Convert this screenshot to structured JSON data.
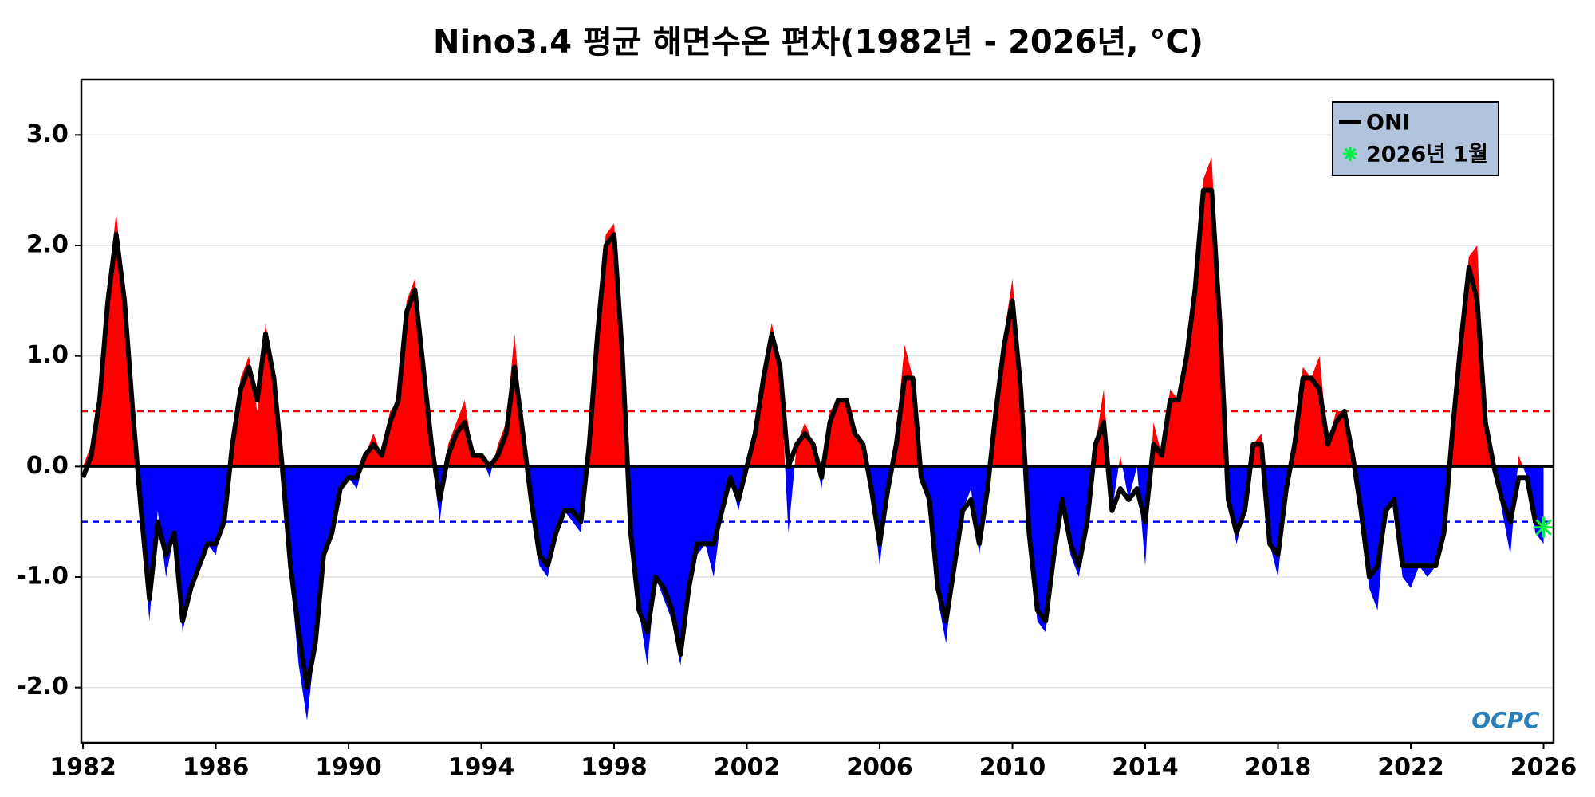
{
  "chart_data": {
    "type": "anomaly-area",
    "title": "Nino3.4 평균 해면수온 편차(1982년 - 2026년, °C)",
    "watermark": "OCPC",
    "x": [
      1982.0,
      1982.25,
      1982.5,
      1982.75,
      1983.0,
      1983.25,
      1983.5,
      1983.75,
      1984.0,
      1984.25,
      1984.5,
      1984.75,
      1985.0,
      1985.25,
      1985.5,
      1985.75,
      1986.0,
      1986.25,
      1986.5,
      1986.75,
      1987.0,
      1987.25,
      1987.5,
      1987.75,
      1988.0,
      1988.25,
      1988.5,
      1988.75,
      1989.0,
      1989.25,
      1989.5,
      1989.75,
      1990.0,
      1990.25,
      1990.5,
      1990.75,
      1991.0,
      1991.25,
      1991.5,
      1991.75,
      1992.0,
      1992.25,
      1992.5,
      1992.75,
      1993.0,
      1993.25,
      1993.5,
      1993.75,
      1994.0,
      1994.25,
      1994.5,
      1994.75,
      1995.0,
      1995.25,
      1995.5,
      1995.75,
      1996.0,
      1996.25,
      1996.5,
      1996.75,
      1997.0,
      1997.25,
      1997.5,
      1997.75,
      1998.0,
      1998.25,
      1998.5,
      1998.75,
      1999.0,
      1999.25,
      1999.5,
      1999.75,
      2000.0,
      2000.25,
      2000.5,
      2000.75,
      2001.0,
      2001.25,
      2001.5,
      2001.75,
      2002.0,
      2002.25,
      2002.5,
      2002.75,
      2003.0,
      2003.25,
      2003.5,
      2003.75,
      2004.0,
      2004.25,
      2004.5,
      2004.75,
      2005.0,
      2005.25,
      2005.5,
      2005.75,
      2006.0,
      2006.25,
      2006.5,
      2006.75,
      2007.0,
      2007.25,
      2007.5,
      2007.75,
      2008.0,
      2008.25,
      2008.5,
      2008.75,
      2009.0,
      2009.25,
      2009.5,
      2009.75,
      2010.0,
      2010.25,
      2010.5,
      2010.75,
      2011.0,
      2011.25,
      2011.5,
      2011.75,
      2012.0,
      2012.25,
      2012.5,
      2012.75,
      2013.0,
      2013.25,
      2013.5,
      2013.75,
      2014.0,
      2014.25,
      2014.5,
      2014.75,
      2015.0,
      2015.25,
      2015.5,
      2015.75,
      2016.0,
      2016.25,
      2016.5,
      2016.75,
      2017.0,
      2017.25,
      2017.5,
      2017.75,
      2018.0,
      2018.25,
      2018.5,
      2018.75,
      2019.0,
      2019.25,
      2019.5,
      2019.75,
      2020.0,
      2020.25,
      2020.5,
      2020.75,
      2021.0,
      2021.25,
      2021.5,
      2021.75,
      2022.0,
      2022.25,
      2022.5,
      2022.75,
      2023.0,
      2023.25,
      2023.5,
      2023.75,
      2024.0,
      2024.25,
      2024.5,
      2024.75,
      2025.0,
      2025.25,
      2025.5,
      2025.75,
      2026.0
    ],
    "anomaly": {
      "positive_color": "#ff0000",
      "negative_color": "#0000ff",
      "values": [
        0.0,
        0.2,
        0.6,
        1.6,
        2.3,
        1.5,
        0.4,
        -0.5,
        -1.4,
        -0.4,
        -1.0,
        -0.6,
        -1.5,
        -1.1,
        -0.9,
        -0.7,
        -0.8,
        -0.4,
        0.3,
        0.8,
        1.0,
        0.5,
        1.3,
        0.8,
        0.0,
        -1.0,
        -1.8,
        -2.3,
        -1.6,
        -0.8,
        -0.6,
        -0.2,
        -0.1,
        -0.2,
        0.1,
        0.3,
        0.1,
        0.5,
        0.6,
        1.5,
        1.7,
        0.9,
        0.1,
        -0.5,
        0.2,
        0.4,
        0.6,
        0.1,
        0.1,
        -0.1,
        0.2,
        0.4,
        1.2,
        0.3,
        -0.4,
        -0.9,
        -1.0,
        -0.6,
        -0.4,
        -0.5,
        -0.6,
        0.2,
        1.3,
        2.1,
        2.2,
        1.0,
        -0.7,
        -1.3,
        -1.8,
        -1.0,
        -1.2,
        -1.4,
        -1.8,
        -1.1,
        -0.8,
        -0.7,
        -1.0,
        -0.4,
        -0.1,
        -0.4,
        0.0,
        0.3,
        0.9,
        1.3,
        0.9,
        -0.6,
        0.2,
        0.4,
        0.2,
        -0.2,
        0.5,
        0.6,
        0.6,
        0.3,
        0.2,
        -0.2,
        -0.9,
        -0.2,
        0.3,
        1.1,
        0.8,
        -0.1,
        -0.4,
        -1.2,
        -1.6,
        -0.9,
        -0.4,
        -0.2,
        -0.8,
        -0.2,
        0.6,
        1.2,
        1.7,
        0.7,
        -0.7,
        -1.4,
        -1.5,
        -0.8,
        -0.3,
        -0.8,
        -1.0,
        -0.5,
        0.2,
        0.7,
        -0.4,
        0.1,
        -0.3,
        0.0,
        -0.9,
        0.4,
        0.1,
        0.7,
        0.6,
        1.1,
        1.7,
        2.6,
        2.8,
        1.3,
        -0.3,
        -0.7,
        -0.4,
        0.2,
        0.3,
        -0.7,
        -1.0,
        -0.2,
        0.3,
        0.9,
        0.8,
        1.0,
        0.2,
        0.5,
        0.5,
        0.1,
        -0.5,
        -1.1,
        -1.3,
        -0.4,
        -0.3,
        -1.0,
        -1.1,
        -0.9,
        -1.0,
        -0.9,
        -0.6,
        0.3,
        1.2,
        1.9,
        2.0,
        0.4,
        0.0,
        -0.4,
        -0.8,
        0.1,
        -0.1,
        -0.6,
        -0.7
      ]
    },
    "series": [
      {
        "name": "ONI",
        "color": "#000000",
        "values": [
          -0.1,
          0.1,
          0.6,
          1.5,
          2.1,
          1.5,
          0.5,
          -0.4,
          -1.2,
          -0.5,
          -0.8,
          -0.6,
          -1.4,
          -1.1,
          -0.9,
          -0.7,
          -0.7,
          -0.5,
          0.2,
          0.7,
          0.9,
          0.6,
          1.2,
          0.8,
          0.0,
          -0.9,
          -1.5,
          -2.0,
          -1.6,
          -0.8,
          -0.6,
          -0.2,
          -0.1,
          -0.1,
          0.1,
          0.2,
          0.1,
          0.4,
          0.6,
          1.4,
          1.6,
          0.9,
          0.2,
          -0.3,
          0.1,
          0.3,
          0.4,
          0.1,
          0.1,
          0.0,
          0.1,
          0.3,
          0.9,
          0.3,
          -0.3,
          -0.8,
          -0.9,
          -0.6,
          -0.4,
          -0.4,
          -0.5,
          0.2,
          1.2,
          2.0,
          2.1,
          1.0,
          -0.6,
          -1.3,
          -1.5,
          -1.0,
          -1.1,
          -1.3,
          -1.7,
          -1.1,
          -0.7,
          -0.7,
          -0.7,
          -0.4,
          -0.1,
          -0.3,
          0.0,
          0.3,
          0.8,
          1.2,
          0.9,
          0.0,
          0.2,
          0.3,
          0.2,
          -0.1,
          0.4,
          0.6,
          0.6,
          0.3,
          0.2,
          -0.2,
          -0.7,
          -0.2,
          0.2,
          0.8,
          0.8,
          -0.1,
          -0.3,
          -1.1,
          -1.4,
          -0.9,
          -0.4,
          -0.3,
          -0.7,
          -0.2,
          0.5,
          1.1,
          1.5,
          0.7,
          -0.6,
          -1.3,
          -1.4,
          -0.8,
          -0.3,
          -0.7,
          -0.9,
          -0.5,
          0.2,
          0.4,
          -0.4,
          -0.2,
          -0.3,
          -0.2,
          -0.5,
          0.2,
          0.1,
          0.6,
          0.6,
          1.0,
          1.6,
          2.5,
          2.5,
          1.3,
          -0.3,
          -0.6,
          -0.4,
          0.2,
          0.2,
          -0.7,
          -0.8,
          -0.2,
          0.2,
          0.8,
          0.8,
          0.7,
          0.2,
          0.4,
          0.5,
          0.1,
          -0.4,
          -1.0,
          -0.9,
          -0.4,
          -0.3,
          -0.9,
          -0.9,
          -0.9,
          -0.9,
          -0.9,
          -0.6,
          0.3,
          1.1,
          1.8,
          1.5,
          0.4,
          0.0,
          -0.3,
          -0.5,
          -0.1,
          -0.1,
          -0.5,
          -0.55
        ]
      }
    ],
    "latest": {
      "label": "2026년 1월",
      "x": 2026.0,
      "value": -0.55,
      "color": "#00ee44"
    },
    "thresholds": [
      {
        "value": 0.5,
        "color": "#ff0000"
      },
      {
        "value": -0.5,
        "color": "#0000ff"
      }
    ],
    "xlim": [
      1981.95,
      2026.3
    ],
    "xticks": [
      1982,
      1986,
      1990,
      1994,
      1998,
      2002,
      2006,
      2010,
      2014,
      2018,
      2022,
      2026
    ],
    "ylim": [
      -2.5,
      3.5
    ],
    "yticks": [
      {
        "value": -2,
        "label": "-2.0"
      },
      {
        "value": -1,
        "label": "-1.0"
      },
      {
        "value": 0,
        "label": "0.0"
      },
      {
        "value": 1,
        "label": "1.0"
      },
      {
        "value": 2,
        "label": "2.0"
      },
      {
        "value": 3,
        "label": "3.0"
      }
    ],
    "grid": true,
    "legend": "upper right",
    "legend_color": "#b0c4de"
  }
}
